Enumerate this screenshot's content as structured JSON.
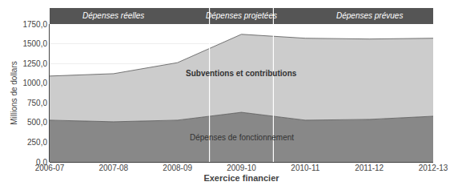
{
  "chart_data": {
    "type": "area",
    "stacked": true,
    "categories": [
      "2006-07",
      "2007-08",
      "2008-09",
      "2009-10",
      "2010-11",
      "2011-12",
      "2012-13"
    ],
    "series": [
      {
        "name": "Dépenses de fonctionnement",
        "color": "#888888",
        "values": [
          530,
          510,
          530,
          630,
          530,
          540,
          580
        ]
      },
      {
        "name": "Subventions et contributions",
        "color": "#cccccc",
        "values": [
          560,
          610,
          730,
          990,
          1040,
          1020,
          990
        ]
      }
    ],
    "ylabel": "Millions de dollars",
    "xlabel": "Exercice financier",
    "ylim": [
      0,
      1750
    ],
    "yticks": [
      {
        "value": 0,
        "label": "0,0"
      },
      {
        "value": 250,
        "label": "250,0"
      },
      {
        "value": 500,
        "label": "500,0"
      },
      {
        "value": 750,
        "label": "750,0"
      },
      {
        "value": 1000,
        "label": "1000,0"
      },
      {
        "value": 1250,
        "label": "1250,0"
      },
      {
        "value": 1500,
        "label": "1500,0"
      },
      {
        "value": 1750,
        "label": "1750,0"
      }
    ],
    "grid": true,
    "annotations": [
      {
        "text": "Dépenses réelles",
        "categories": [
          "2006-07",
          "2007-08",
          "2008-09"
        ]
      },
      {
        "text": "Dépenses projetées",
        "categories": [
          "2009-10"
        ]
      },
      {
        "text": "Dépenses prévues",
        "categories": [
          "2010-11",
          "2011-12",
          "2012-13"
        ]
      }
    ]
  }
}
